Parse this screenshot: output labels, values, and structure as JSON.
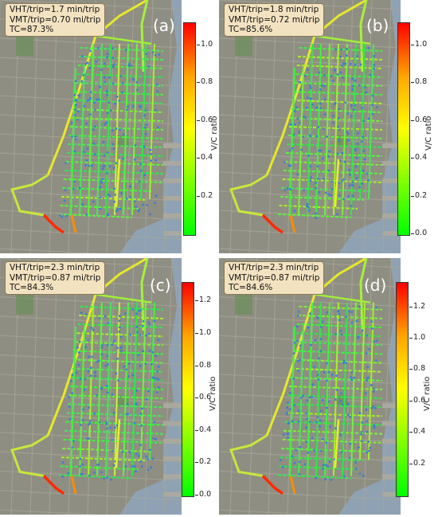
{
  "panels": [
    {
      "id": "a",
      "label": "(a)",
      "vht": "VHT/trip=1.7 min/trip",
      "vmt": "VMT/trip=0.70 mi/trip",
      "tc": "TC=87.3%",
      "cbar_max": 1.12,
      "ticks": [
        "0.2",
        "0.4",
        "0.6",
        "0.8",
        "1.0"
      ],
      "tick_values": [
        0.2,
        0.4,
        0.6,
        0.8,
        1.0
      ]
    },
    {
      "id": "b",
      "label": "(b)",
      "vht": "VHT/trip=1.8 min/trip",
      "vmt": "VMT/trip=0.72 mi/trip",
      "tc": "TC=85.6%",
      "cbar_max": 1.12,
      "ticks": [
        "0.0",
        "0.2",
        "0.4",
        "0.6",
        "0.8",
        "1.0"
      ],
      "tick_values": [
        0.0,
        0.2,
        0.4,
        0.6,
        0.8,
        1.0
      ]
    },
    {
      "id": "c",
      "label": "(c)",
      "vht": "VHT/trip=2.3 min/trip",
      "vmt": "VMT/trip=0.87 mi/trip",
      "tc": "TC=84.3%",
      "cbar_max": 1.32,
      "ticks": [
        "0.0",
        "0.2",
        "0.4",
        "0.6",
        "0.8",
        "1.0",
        "1.2"
      ],
      "tick_values": [
        0.0,
        0.2,
        0.4,
        0.6,
        0.8,
        1.0,
        1.2
      ]
    },
    {
      "id": "d",
      "label": "(d)",
      "vht": "VHT/trip=2.3 min/trip",
      "vmt": "VMT/trip=0.87 mi/trip",
      "tc": "TC=84.6%",
      "cbar_max": 1.36,
      "ticks": [
        "0.2",
        "0.4",
        "0.6",
        "0.8",
        "1.0",
        "1.2"
      ],
      "tick_values": [
        0.2,
        0.4,
        0.6,
        0.8,
        1.0,
        1.2
      ]
    }
  ],
  "colorbar_title": "V/C ratio",
  "colors": {
    "water": "#8aa0b2",
    "land": "#8c8c80",
    "low": "#00ff00",
    "mid": "#ffff00",
    "high": "#ff0000",
    "node": "#3a7fd0"
  }
}
